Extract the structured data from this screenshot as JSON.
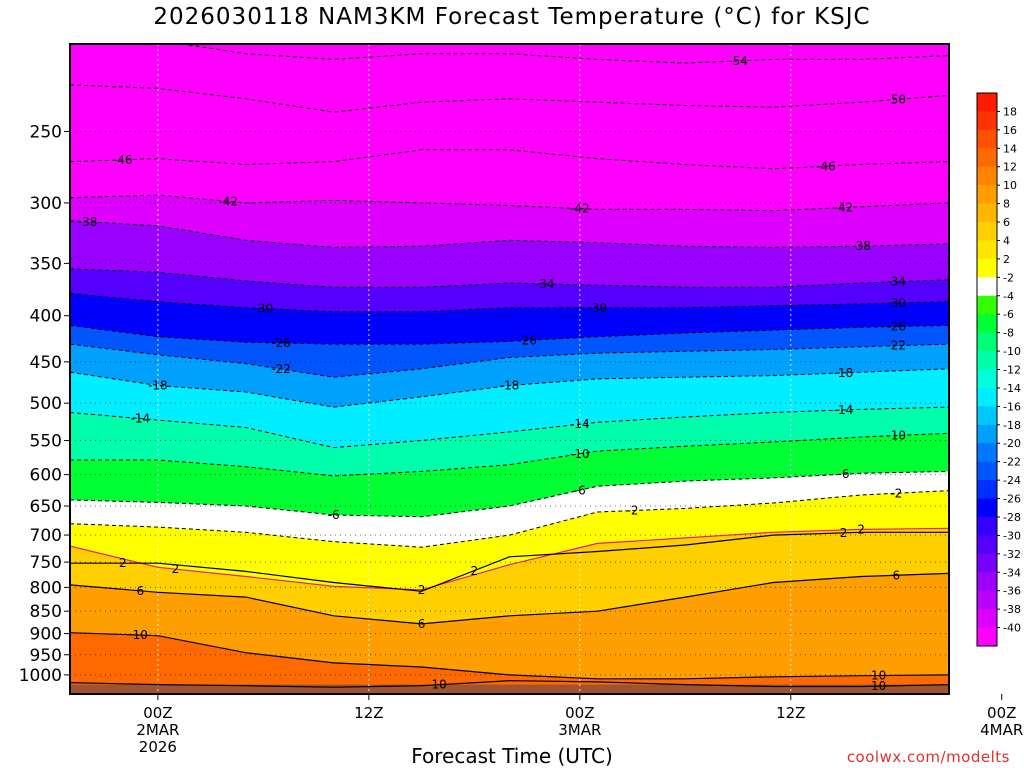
{
  "header": {
    "title": "2026030118 NAM3KM Forecast Temperature (°C) for KSJC"
  },
  "footer": {
    "xlabel": "Forecast Time (UTC)",
    "credit": "coolwx.com/modelts"
  },
  "chart_data": {
    "type": "heatmap",
    "title": "2026030118 NAM3KM Forecast Temperature (°C) for KSJC",
    "xlabel": "Forecast Time (UTC)",
    "ylabel": "",
    "x_range_hours": [
      -5,
      45
    ],
    "x_ticks": [
      {
        "hour": 0,
        "lines": [
          "00Z",
          "2MAR",
          "2026"
        ]
      },
      {
        "hour": 12,
        "lines": [
          "12Z"
        ]
      },
      {
        "hour": 24,
        "lines": [
          "00Z",
          "3MAR"
        ]
      },
      {
        "hour": 36,
        "lines": [
          "12Z"
        ]
      },
      {
        "hour": 48,
        "lines": [
          "00Z",
          "4MAR"
        ]
      }
    ],
    "y_axis": "pressure (hPa), log scale, inverted",
    "y_range": [
      1050,
      200
    ],
    "y_ticks": [
      250,
      300,
      350,
      400,
      450,
      500,
      550,
      600,
      650,
      700,
      750,
      800,
      850,
      900,
      950,
      1000
    ],
    "grid": true,
    "colorbar": {
      "placement": "right",
      "levels": [
        18,
        16,
        14,
        12,
        10,
        8,
        6,
        4,
        2,
        -2,
        -4,
        -6,
        -8,
        -10,
        -12,
        -14,
        -16,
        -18,
        -20,
        -22,
        -24,
        -26,
        -28,
        -30,
        -32,
        -34,
        -36,
        -38,
        -40
      ],
      "colors": [
        "#ff1a00",
        "#ff3300",
        "#ff5000",
        "#ff6a00",
        "#ff8400",
        "#ff9e00",
        "#ffb600",
        "#ffcf00",
        "#ffe600",
        "#ffff00",
        "#ffffff",
        "#33ff00",
        "#00ff33",
        "#00ff77",
        "#00ffaa",
        "#00ffdd",
        "#00eeff",
        "#00c8ff",
        "#00a0ff",
        "#0077ff",
        "#0055ff",
        "#0030ff",
        "#0000ff",
        "#3300ff",
        "#5500ff",
        "#7700ff",
        "#9900ff",
        "#bb00ff",
        "#dd00ff",
        "#ff00ff"
      ]
    },
    "ground_color": "#9e5430",
    "isotherm_times": [
      -5,
      0,
      5,
      10,
      15,
      20,
      25,
      30,
      35,
      40,
      45
    ],
    "isotherms": [
      {
        "temp": -54,
        "p": [
          198,
          198,
          205,
          208,
          205,
          205,
          208,
          210,
          208,
          208,
          206
        ],
        "labels": [
          [
            33,
            -54
          ]
        ]
      },
      {
        "temp": -50,
        "p": [
          222,
          224,
          230,
          238,
          232,
          230,
          232,
          234,
          235,
          232,
          228
        ],
        "labels": [
          [
            42,
            -50
          ]
        ]
      },
      {
        "temp": -46,
        "p": [
          270,
          268,
          272,
          270,
          262,
          262,
          268,
          272,
          275,
          272,
          270
        ],
        "labels": [
          [
            -2,
            -46
          ],
          [
            38,
            -46
          ]
        ]
      },
      {
        "temp": -42,
        "p": [
          296,
          294,
          300,
          298,
          300,
          302,
          305,
          305,
          306,
          303,
          300
        ],
        "labels": [
          [
            4,
            -42
          ],
          [
            24,
            -42
          ],
          [
            39,
            -42
          ]
        ]
      },
      {
        "temp": -38,
        "p": [
          314,
          318,
          330,
          336,
          335,
          330,
          332,
          335,
          336,
          335,
          333
        ],
        "labels": [
          [
            -4,
            -38
          ],
          [
            40,
            -38
          ]
        ]
      },
      {
        "temp": -34,
        "p": [
          355,
          358,
          366,
          372,
          372,
          368,
          370,
          372,
          372,
          368,
          365
        ],
        "labels": [
          [
            22,
            -34
          ],
          [
            42,
            -34
          ]
        ]
      },
      {
        "temp": -30,
        "p": [
          378,
          386,
          392,
          396,
          396,
          392,
          392,
          392,
          390,
          388,
          386
        ],
        "labels": [
          [
            6,
            -30
          ],
          [
            25,
            -30
          ],
          [
            42,
            -30
          ]
        ]
      },
      {
        "temp": -26,
        "p": [
          410,
          422,
          428,
          430,
          430,
          427,
          422,
          418,
          415,
          412,
          410
        ],
        "labels": [
          [
            7,
            -26
          ],
          [
            21,
            -26
          ],
          [
            42,
            -26
          ]
        ]
      },
      {
        "temp": -22,
        "p": [
          430,
          442,
          452,
          468,
          458,
          445,
          440,
          438,
          436,
          433,
          430
        ],
        "labels": [
          [
            7,
            -22
          ],
          [
            42,
            -22
          ]
        ]
      },
      {
        "temp": -18,
        "p": [
          462,
          478,
          486,
          505,
          492,
          478,
          470,
          468,
          466,
          462,
          458
        ],
        "labels": [
          [
            0,
            -18
          ],
          [
            20,
            -18
          ],
          [
            39,
            -18
          ]
        ]
      },
      {
        "temp": -14,
        "p": [
          512,
          522,
          532,
          560,
          550,
          538,
          525,
          518,
          512,
          508,
          505
        ],
        "labels": [
          [
            -1,
            -14
          ],
          [
            24,
            -14
          ],
          [
            39,
            -14
          ]
        ]
      },
      {
        "temp": -10,
        "p": [
          578,
          578,
          588,
          602,
          595,
          585,
          565,
          558,
          552,
          545,
          540
        ],
        "labels": [
          [
            24,
            -10
          ],
          [
            42,
            -10
          ]
        ]
      },
      {
        "temp": -6,
        "p": [
          640,
          644,
          650,
          665,
          668,
          650,
          618,
          610,
          605,
          598,
          595
        ],
        "labels": [
          [
            10,
            -6
          ],
          [
            24,
            -6
          ],
          [
            39,
            -6
          ]
        ]
      },
      {
        "temp": -2,
        "p": [
          680,
          686,
          695,
          712,
          722,
          700,
          660,
          654,
          645,
          632,
          625
        ],
        "labels": [
          [
            27,
            -2
          ],
          [
            42,
            -2
          ]
        ]
      }
    ],
    "warm_isotherms": [
      {
        "temp": 2,
        "p": [
          720,
          760,
          778,
          798,
          805,
          755,
          715,
          705,
          695,
          690,
          688
        ],
        "labels": [
          [
            1,
            2
          ],
          [
            15,
            2
          ],
          [
            40,
            2
          ]
        ]
      },
      {
        "temp": 2,
        "p": [
          752,
          752,
          768,
          790,
          808,
          740,
          730,
          718,
          700,
          695,
          695
        ],
        "labels": [
          [
            -2,
            2
          ],
          [
            18,
            2
          ],
          [
            39,
            2
          ]
        ]
      },
      {
        "temp": 6,
        "p": [
          795,
          810,
          820,
          860,
          878,
          860,
          850,
          820,
          790,
          778,
          772
        ],
        "labels": [
          [
            -1,
            6
          ],
          [
            15,
            6
          ],
          [
            42,
            6
          ]
        ]
      },
      {
        "temp": 10,
        "p": [
          898,
          905,
          945,
          970,
          980,
          1000,
          1010,
          1010,
          1005,
          1002,
          1000
        ],
        "labels": [
          [
            -1,
            10
          ],
          [
            41,
            10
          ]
        ]
      },
      {
        "temp": 10,
        "p": [
          1020,
          1025,
          1028,
          1032,
          1028,
          1015,
          1018,
          1025,
          1030,
          1030,
          1025
        ],
        "labels": [
          [
            16,
            10
          ],
          [
            41,
            10
          ]
        ]
      }
    ]
  }
}
